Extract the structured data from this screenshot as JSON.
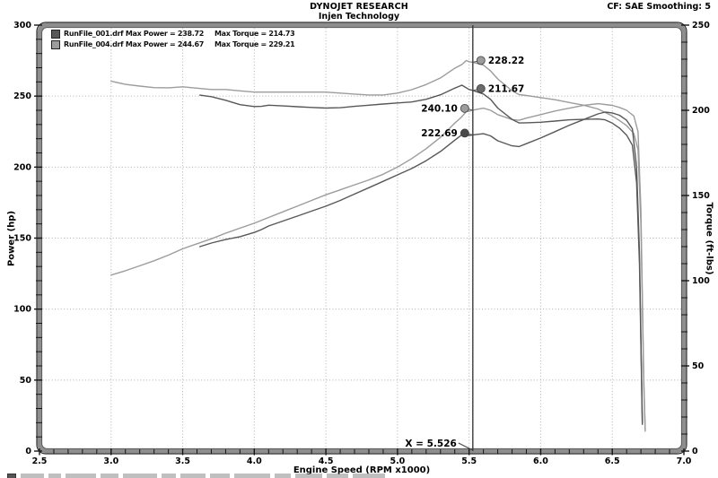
{
  "header": {
    "title": "DYNOJET RESEARCH",
    "subtitle": "Injen Technology",
    "cf_label": "CF: SAE  Smoothing: 5"
  },
  "axes": {
    "x_label": "Engine Speed (RPM x1000)",
    "y_left_label": "Power (hp)",
    "y_right_label": "Torque (ft-lbs)"
  },
  "legend": {
    "items": [
      {
        "file": "RunFile_001.drf",
        "power_text": "Max Power = 238.72",
        "torque_text": "Max Torque = 214.73",
        "color": "#585858"
      },
      {
        "file": "RunFile_004.drf",
        "power_text": "Max Power = 244.67",
        "torque_text": "Max Torque = 229.21",
        "color": "#9c9c9c"
      }
    ]
  },
  "chart_data": {
    "type": "line",
    "title": "DYNOJET RESEARCH",
    "subtitle": "Injen Technology",
    "correction": "SAE",
    "smoothing": "5",
    "x_axis": {
      "label": "Engine Speed (RPM x1000)",
      "min": 2.5,
      "max": 7.0,
      "major_ticks": [
        "2.5",
        "3.0",
        "3.5",
        "4.0",
        "4.5",
        "5.0",
        "5.5",
        "6.0",
        "6.5",
        "7.0"
      ],
      "minor_step": 0.1,
      "gridlines": [
        3.0,
        3.5,
        4.0,
        4.5,
        5.0,
        5.5,
        6.0,
        6.5
      ]
    },
    "power_axis": {
      "label": "Power (hp)",
      "min": 0,
      "max": 300,
      "major_ticks": [
        0,
        50,
        100,
        150,
        200,
        250,
        300
      ],
      "minor_step": 10,
      "gridlines": [
        50,
        100,
        150,
        200,
        250
      ]
    },
    "torque_axis": {
      "label": "Torque (ft-lbs)",
      "min": 0,
      "max": 250,
      "major_ticks": [
        0,
        50,
        100,
        150,
        200,
        250
      ],
      "minor_step": 10
    },
    "colors": {
      "run001": "#585858",
      "run004": "#9c9c9c",
      "grid": "#b0b0b0",
      "frame_body": "#8e8e8e",
      "frame_edge": "#2e2e2e",
      "cursor": "#3a3a3a"
    },
    "series": [
      {
        "name": "run004_power",
        "run": "RunFile_004.drf",
        "axis": "power",
        "color": "#9c9c9c",
        "max": 244.67,
        "points": [
          [
            3.0,
            124
          ],
          [
            3.1,
            127
          ],
          [
            3.2,
            130.5
          ],
          [
            3.3,
            134
          ],
          [
            3.4,
            138
          ],
          [
            3.5,
            142.5
          ],
          [
            3.6,
            146
          ],
          [
            3.7,
            149.5
          ],
          [
            3.8,
            153.5
          ],
          [
            3.9,
            157
          ],
          [
            4.0,
            160.5
          ],
          [
            4.1,
            164.5
          ],
          [
            4.2,
            168.5
          ],
          [
            4.3,
            172.5
          ],
          [
            4.4,
            176.5
          ],
          [
            4.5,
            180.5
          ],
          [
            4.6,
            184
          ],
          [
            4.7,
            187.5
          ],
          [
            4.8,
            191
          ],
          [
            4.9,
            195
          ],
          [
            5.0,
            200
          ],
          [
            5.1,
            206
          ],
          [
            5.2,
            213
          ],
          [
            5.3,
            221
          ],
          [
            5.4,
            231
          ],
          [
            5.45,
            235.5
          ],
          [
            5.48,
            239.2
          ],
          [
            5.5,
            239.3
          ],
          [
            5.526,
            240.1
          ],
          [
            5.6,
            241.5
          ],
          [
            5.65,
            240
          ],
          [
            5.7,
            237
          ],
          [
            5.8,
            233.5
          ],
          [
            5.85,
            233
          ],
          [
            5.9,
            234.5
          ],
          [
            6.0,
            237
          ],
          [
            6.1,
            239.5
          ],
          [
            6.2,
            241.5
          ],
          [
            6.3,
            243.5
          ],
          [
            6.4,
            244.67
          ],
          [
            6.5,
            243.5
          ],
          [
            6.55,
            242
          ],
          [
            6.6,
            240
          ],
          [
            6.65,
            236
          ],
          [
            6.68,
            225
          ],
          [
            6.7,
            170
          ],
          [
            6.71,
            110
          ],
          [
            6.72,
            50
          ],
          [
            6.73,
            15
          ]
        ]
      },
      {
        "name": "run004_torque",
        "run": "RunFile_004.drf",
        "axis": "torque",
        "color": "#9c9c9c",
        "max": 229.21,
        "points": [
          [
            3.0,
            217.1
          ],
          [
            3.1,
            215.2
          ],
          [
            3.2,
            214.2
          ],
          [
            3.3,
            213.3
          ],
          [
            3.4,
            213.2
          ],
          [
            3.5,
            213.8
          ],
          [
            3.6,
            213.0
          ],
          [
            3.7,
            212.2
          ],
          [
            3.8,
            212.2
          ],
          [
            3.9,
            211.4
          ],
          [
            4.0,
            210.7
          ],
          [
            4.1,
            210.7
          ],
          [
            4.2,
            210.7
          ],
          [
            4.3,
            210.7
          ],
          [
            4.4,
            210.7
          ],
          [
            4.5,
            210.7
          ],
          [
            4.6,
            210.1
          ],
          [
            4.7,
            209.5
          ],
          [
            4.8,
            209.0
          ],
          [
            4.9,
            209.0
          ],
          [
            5.0,
            210.1
          ],
          [
            5.1,
            212.1
          ],
          [
            5.2,
            215.1
          ],
          [
            5.3,
            219.0
          ],
          [
            5.4,
            224.7
          ],
          [
            5.45,
            226.9
          ],
          [
            5.48,
            229.21
          ],
          [
            5.5,
            228.5
          ],
          [
            5.526,
            228.22
          ],
          [
            5.6,
            226.5
          ],
          [
            5.65,
            223.1
          ],
          [
            5.7,
            218.4
          ],
          [
            5.8,
            211.4
          ],
          [
            5.85,
            209.2
          ],
          [
            5.9,
            208.7
          ],
          [
            6.0,
            207.5
          ],
          [
            6.1,
            206.2
          ],
          [
            6.2,
            204.6
          ],
          [
            6.3,
            203.0
          ],
          [
            6.4,
            200.8
          ],
          [
            6.5,
            196.7
          ],
          [
            6.55,
            194.0
          ],
          [
            6.6,
            191.0
          ],
          [
            6.65,
            186.4
          ],
          [
            6.68,
            176.9
          ],
          [
            6.7,
            133.3
          ],
          [
            6.71,
            86.1
          ],
          [
            6.72,
            39.1
          ],
          [
            6.73,
            11.7
          ]
        ]
      },
      {
        "name": "run001_power",
        "run": "RunFile_001.drf",
        "axis": "power",
        "color": "#585858",
        "max": 238.72,
        "points": [
          [
            3.62,
            144
          ],
          [
            3.7,
            146.5
          ],
          [
            3.8,
            149
          ],
          [
            3.9,
            151
          ],
          [
            4.0,
            154
          ],
          [
            4.05,
            156
          ],
          [
            4.1,
            158.5
          ],
          [
            4.2,
            162
          ],
          [
            4.3,
            165.5
          ],
          [
            4.4,
            169
          ],
          [
            4.5,
            172.5
          ],
          [
            4.6,
            176.5
          ],
          [
            4.7,
            181
          ],
          [
            4.8,
            185.5
          ],
          [
            4.9,
            190
          ],
          [
            5.0,
            194.5
          ],
          [
            5.1,
            199
          ],
          [
            5.2,
            204.5
          ],
          [
            5.3,
            211
          ],
          [
            5.4,
            219
          ],
          [
            5.45,
            222.8
          ],
          [
            5.5,
            222.2
          ],
          [
            5.526,
            222.69
          ],
          [
            5.6,
            223.5
          ],
          [
            5.65,
            222
          ],
          [
            5.7,
            218.5
          ],
          [
            5.8,
            215
          ],
          [
            5.85,
            214.5
          ],
          [
            5.9,
            216.5
          ],
          [
            6.0,
            220.5
          ],
          [
            6.1,
            225
          ],
          [
            6.2,
            229.5
          ],
          [
            6.3,
            233.5
          ],
          [
            6.4,
            237.5
          ],
          [
            6.45,
            238.72
          ],
          [
            6.5,
            238.2
          ],
          [
            6.55,
            236.5
          ],
          [
            6.6,
            233
          ],
          [
            6.64,
            227
          ],
          [
            6.67,
            200
          ],
          [
            6.69,
            140
          ],
          [
            6.7,
            80
          ],
          [
            6.71,
            20
          ]
        ]
      },
      {
        "name": "run001_torque",
        "run": "RunFile_001.drf",
        "axis": "torque",
        "color": "#585858",
        "max": 214.73,
        "points": [
          [
            3.62,
            208.9
          ],
          [
            3.7,
            208.0
          ],
          [
            3.8,
            205.9
          ],
          [
            3.9,
            203.3
          ],
          [
            4.0,
            202.2
          ],
          [
            4.05,
            202.3
          ],
          [
            4.1,
            203.0
          ],
          [
            4.2,
            202.6
          ],
          [
            4.3,
            202.1
          ],
          [
            4.4,
            201.7
          ],
          [
            4.5,
            201.3
          ],
          [
            4.6,
            201.5
          ],
          [
            4.7,
            202.3
          ],
          [
            4.8,
            203.0
          ],
          [
            4.9,
            203.7
          ],
          [
            5.0,
            204.3
          ],
          [
            5.1,
            204.9
          ],
          [
            5.2,
            206.5
          ],
          [
            5.3,
            209.1
          ],
          [
            5.4,
            213.0
          ],
          [
            5.45,
            214.73
          ],
          [
            5.5,
            212.2
          ],
          [
            5.526,
            211.67
          ],
          [
            5.6,
            209.6
          ],
          [
            5.65,
            206.4
          ],
          [
            5.7,
            201.3
          ],
          [
            5.8,
            194.7
          ],
          [
            5.85,
            192.6
          ],
          [
            5.9,
            192.7
          ],
          [
            6.0,
            193.0
          ],
          [
            6.1,
            193.7
          ],
          [
            6.2,
            194.4
          ],
          [
            6.3,
            194.7
          ],
          [
            6.4,
            194.9
          ],
          [
            6.45,
            194.4
          ],
          [
            6.5,
            192.5
          ],
          [
            6.55,
            189.6
          ],
          [
            6.6,
            185.4
          ],
          [
            6.64,
            179.5
          ],
          [
            6.67,
            157.5
          ],
          [
            6.69,
            109.9
          ],
          [
            6.7,
            62.7
          ],
          [
            6.71,
            15.7
          ]
        ]
      }
    ],
    "cursor": {
      "x": 5.526,
      "label": "X = 5.526",
      "callouts": [
        {
          "label": "228.22",
          "value": 228.22,
          "axis": "torque",
          "color": "#9c9c9c",
          "side": "right"
        },
        {
          "label": "211.67",
          "value": 211.67,
          "axis": "torque",
          "color": "#6a6a6a",
          "side": "right"
        },
        {
          "label": "240.10",
          "value": 240.1,
          "axis": "power",
          "color": "#9c9c9c",
          "side": "left"
        },
        {
          "label": "222.69",
          "value": 222.69,
          "axis": "power",
          "color": "#4a4a4a",
          "side": "left"
        }
      ]
    }
  },
  "bottom_strip": {
    "note": "partially visible caption row clipped at bottom edge of screenshot",
    "block_widths": [
      26,
      14,
      34,
      20,
      38,
      16,
      28,
      22,
      40,
      18,
      30,
      24,
      36,
      14,
      26,
      20
    ]
  }
}
